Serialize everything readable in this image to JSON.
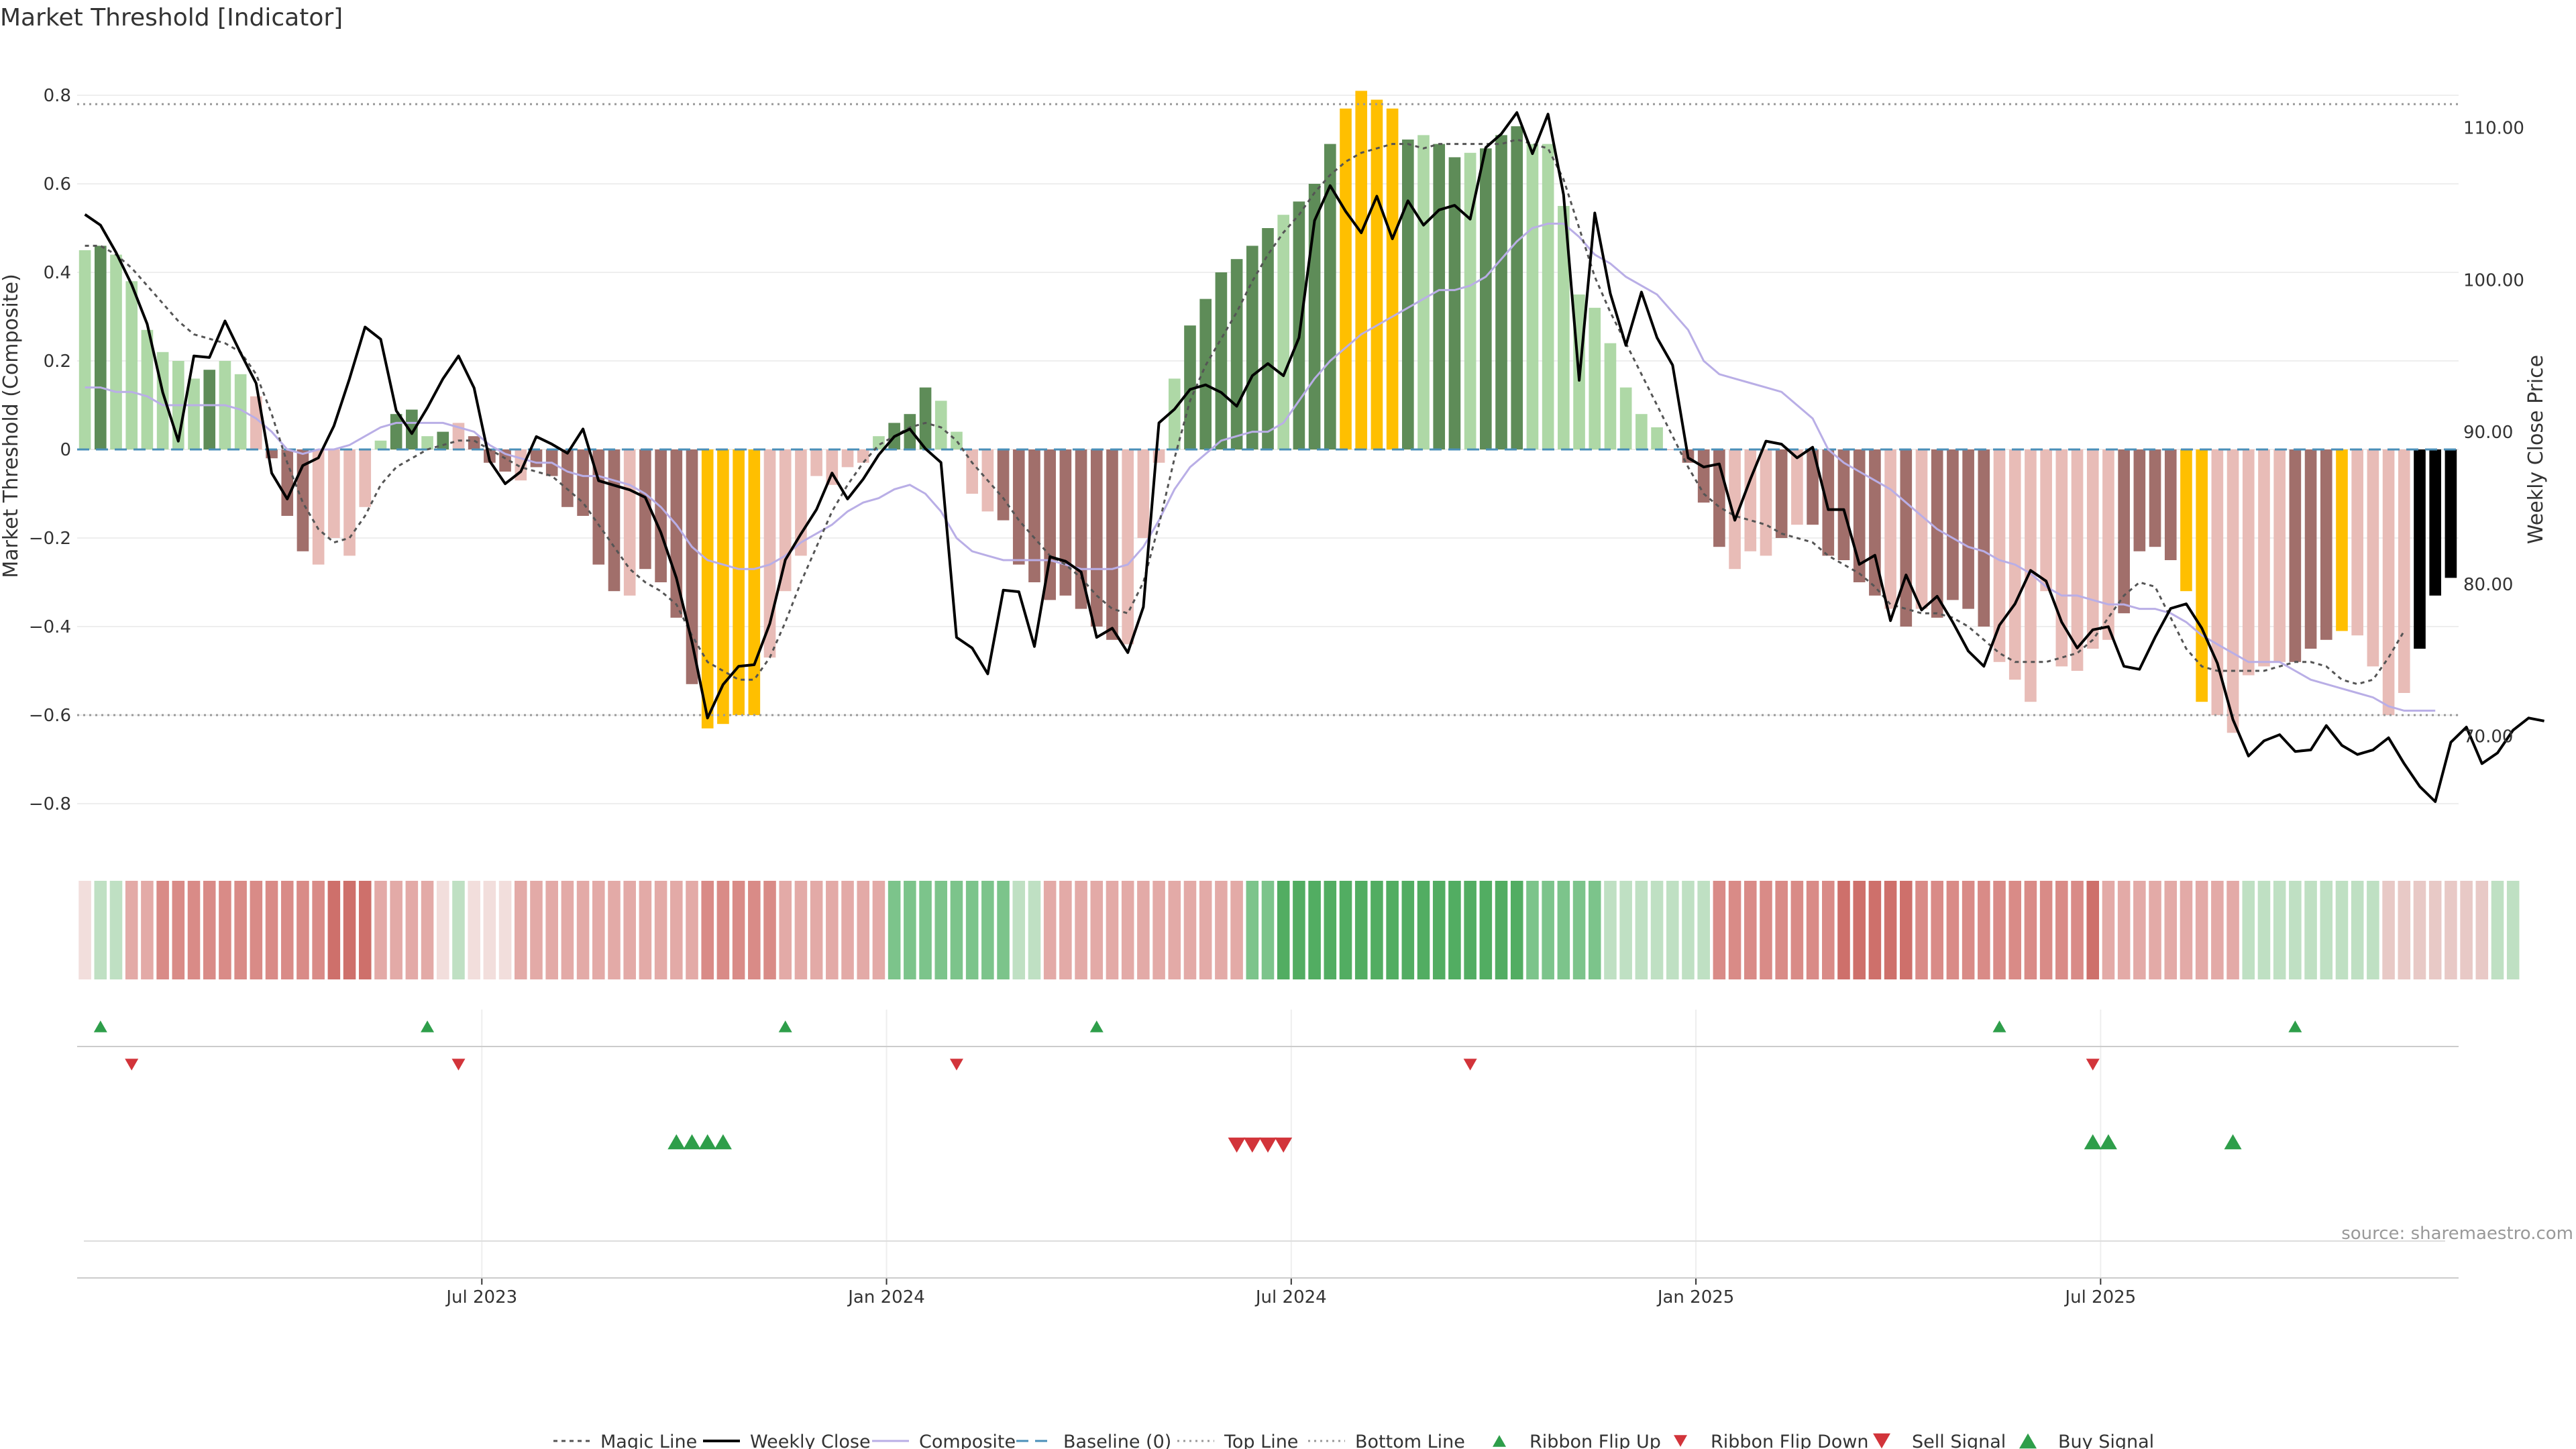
{
  "title": "Market Threshold [Indicator]",
  "source_note": "source: sharemaestro.com",
  "chart_data": {
    "type": "bar",
    "title": "Market Threshold [Indicator]",
    "ylabel": "Market Threshold (Composite)",
    "ylabel_right": "Weekly Close Price",
    "ylim": [
      -0.9,
      0.9
    ],
    "ylim_right": [
      63.0,
      114.0
    ],
    "y_ticks": [
      "0.8",
      "0.6",
      "0.4",
      "0.2",
      "0",
      "−0.2",
      "−0.4",
      "−0.6",
      "−0.8"
    ],
    "y_ticks_right": [
      "110.00",
      "100.00",
      "90.00",
      "80.00",
      "70.00"
    ],
    "x_ticks": [
      "Jul 2023",
      "Jan 2024",
      "Jul 2024",
      "Jan 2025",
      "Jul 2025"
    ],
    "x_tick_weeks": [
      26,
      52,
      78,
      104,
      130
    ],
    "top_line": 0.78,
    "bottom_line": -0.6,
    "baseline": 0,
    "composite": [
      0.45,
      0.46,
      0.44,
      0.38,
      0.27,
      0.22,
      0.2,
      0.16,
      0.18,
      0.2,
      0.17,
      0.12,
      -0.02,
      -0.15,
      -0.23,
      -0.26,
      -0.2,
      -0.24,
      -0.13,
      0.02,
      0.08,
      0.09,
      0.03,
      0.04,
      0.06,
      0.03,
      -0.03,
      -0.05,
      -0.07,
      -0.04,
      -0.06,
      -0.13,
      -0.15,
      -0.26,
      -0.32,
      -0.33,
      -0.27,
      -0.3,
      -0.38,
      -0.53,
      -0.63,
      -0.62,
      -0.6,
      -0.6,
      -0.47,
      -0.32,
      -0.24,
      -0.06,
      -0.08,
      -0.04,
      -0.03,
      0.03,
      0.06,
      0.08,
      0.14,
      0.11,
      0.04,
      -0.1,
      -0.14,
      -0.16,
      -0.26,
      -0.3,
      -0.34,
      -0.33,
      -0.36,
      -0.4,
      -0.43,
      -0.44,
      -0.2,
      -0.03,
      0.16,
      0.28,
      0.34,
      0.4,
      0.43,
      0.46,
      0.5,
      0.53,
      0.56,
      0.6,
      0.69,
      0.77,
      0.81,
      0.79,
      0.77,
      0.7,
      0.71,
      0.69,
      0.66,
      0.67,
      0.68,
      0.71,
      0.73,
      0.69,
      0.69,
      0.55,
      0.35,
      0.32,
      0.24,
      0.14,
      0.08,
      0.05,
      0.0,
      -0.03,
      -0.12,
      -0.22,
      -0.27,
      -0.23,
      -0.24,
      -0.2,
      -0.17,
      -0.17,
      -0.24,
      -0.25,
      -0.3,
      -0.33,
      -0.36,
      -0.4,
      -0.36,
      -0.38,
      -0.34,
      -0.36,
      -0.4,
      -0.48,
      -0.52,
      -0.57,
      -0.32,
      -0.49,
      -0.5,
      -0.45,
      -0.43,
      -0.37,
      -0.23,
      -0.22,
      -0.25,
      -0.32,
      -0.57,
      -0.6,
      -0.64,
      -0.51,
      -0.49,
      -0.48,
      -0.48,
      -0.45,
      -0.43,
      -0.41,
      -0.42,
      -0.49,
      -0.6,
      -0.55,
      -0.45,
      -0.33,
      -0.29
    ],
    "bar_colors": [
      "#aed8a6",
      "#5e8c58",
      "#aed8a6",
      "#aed8a6",
      "#aed8a6",
      "#aed8a6",
      "#aed8a6",
      "#aed8a6",
      "#5e8c58",
      "#aed8a6",
      "#aed8a6",
      "#e8bcb7",
      "#a16f6b",
      "#a16f6b",
      "#a16f6b",
      "#e8bcb7",
      "#e8bcb7",
      "#e8bcb7",
      "#e8bcb7",
      "#aed8a6",
      "#5e8c58",
      "#5e8c58",
      "#aed8a6",
      "#5e8c58",
      "#e8bcb7",
      "#a16f6b",
      "#a16f6b",
      "#a16f6b",
      "#e8bcb7",
      "#a16f6b",
      "#a16f6b",
      "#a16f6b",
      "#a16f6b",
      "#a16f6b",
      "#a16f6b",
      "#e8bcb7",
      "#a16f6b",
      "#a16f6b",
      "#a16f6b",
      "#a16f6b",
      "#ffbf00",
      "#ffbf00",
      "#ffbf00",
      "#ffbf00",
      "#e8bcb7",
      "#e8bcb7",
      "#e8bcb7",
      "#e8bcb7",
      "#e8bcb7",
      "#e8bcb7",
      "#e8bcb7",
      "#aed8a6",
      "#5e8c58",
      "#5e8c58",
      "#5e8c58",
      "#aed8a6",
      "#aed8a6",
      "#e8bcb7",
      "#e8bcb7",
      "#a16f6b",
      "#a16f6b",
      "#a16f6b",
      "#a16f6b",
      "#a16f6b",
      "#a16f6b",
      "#a16f6b",
      "#a16f6b",
      "#e8bcb7",
      "#e8bcb7",
      "#e8bcb7",
      "#aed8a6",
      "#5e8c58",
      "#5e8c58",
      "#5e8c58",
      "#5e8c58",
      "#5e8c58",
      "#5e8c58",
      "#aed8a6",
      "#5e8c58",
      "#5e8c58",
      "#5e8c58",
      "#ffbf00",
      "#ffbf00",
      "#ffbf00",
      "#ffbf00",
      "#5e8c58",
      "#aed8a6",
      "#5e8c58",
      "#5e8c58",
      "#aed8a6",
      "#5e8c58",
      "#5e8c58",
      "#5e8c58",
      "#aed8a6",
      "#aed8a6",
      "#aed8a6",
      "#aed8a6",
      "#aed8a6",
      "#aed8a6",
      "#aed8a6",
      "#aed8a6",
      "#aed8a6",
      "#e8bcb7",
      "#a16f6b",
      "#a16f6b",
      "#a16f6b",
      "#e8bcb7",
      "#e8bcb7",
      "#e8bcb7",
      "#a16f6b",
      "#e8bcb7",
      "#a16f6b",
      "#a16f6b",
      "#a16f6b",
      "#a16f6b",
      "#a16f6b",
      "#e8bcb7",
      "#a16f6b",
      "#e8bcb7",
      "#a16f6b",
      "#a16f6b",
      "#a16f6b",
      "#a16f6b",
      "#e8bcb7",
      "#e8bcb7",
      "#e8bcb7",
      "#e8bcb7",
      "#e8bcb7",
      "#e8bcb7",
      "#e8bcb7",
      "#e8bcb7",
      "#a16f6b",
      "#a16f6b",
      "#a16f6b",
      "#a16f6b",
      "#ffbf00",
      "#ffbf00",
      "#e8bcb7",
      "#e8bcb7",
      "#e8bcb7",
      "#e8bcb7",
      "#e8bcb7",
      "#a16f6b",
      "#a16f6b",
      "#a16f6b",
      "#ffbf00",
      "#e8bcb7",
      "#e8bcb7",
      "#e8bcb7",
      "#e8bcb7"
    ],
    "magic_line": [
      0.46,
      0.46,
      0.44,
      0.41,
      0.37,
      0.33,
      0.29,
      0.26,
      0.25,
      0.24,
      0.22,
      0.17,
      0.08,
      -0.03,
      -0.12,
      -0.18,
      -0.21,
      -0.2,
      -0.15,
      -0.08,
      -0.04,
      -0.02,
      -0.0,
      0.01,
      0.02,
      0.02,
      0.0,
      -0.02,
      -0.04,
      -0.05,
      -0.06,
      -0.09,
      -0.12,
      -0.17,
      -0.22,
      -0.27,
      -0.3,
      -0.32,
      -0.35,
      -0.42,
      -0.48,
      -0.5,
      -0.52,
      -0.52,
      -0.47,
      -0.39,
      -0.3,
      -0.22,
      -0.14,
      -0.08,
      -0.03,
      0.01,
      0.03,
      0.05,
      0.06,
      0.05,
      0.02,
      -0.03,
      -0.07,
      -0.11,
      -0.16,
      -0.2,
      -0.24,
      -0.26,
      -0.29,
      -0.33,
      -0.36,
      -0.37,
      -0.3,
      -0.17,
      -0.02,
      0.11,
      0.19,
      0.25,
      0.31,
      0.38,
      0.44,
      0.49,
      0.53,
      0.58,
      0.62,
      0.65,
      0.67,
      0.68,
      0.69,
      0.69,
      0.68,
      0.69,
      0.69,
      0.69,
      0.69,
      0.69,
      0.7,
      0.69,
      0.68,
      0.61,
      0.5,
      0.39,
      0.31,
      0.24,
      0.17,
      0.1,
      0.03,
      -0.04,
      -0.1,
      -0.13,
      -0.15,
      -0.16,
      -0.17,
      -0.19,
      -0.2,
      -0.21,
      -0.24,
      -0.26,
      -0.28,
      -0.31,
      -0.35,
      -0.36,
      -0.37,
      -0.37,
      -0.38,
      -0.4,
      -0.43,
      -0.46,
      -0.48,
      -0.48,
      -0.48,
      -0.47,
      -0.46,
      -0.43,
      -0.38,
      -0.33,
      -0.3,
      -0.31,
      -0.38,
      -0.45,
      -0.49,
      -0.5,
      -0.5,
      -0.5,
      -0.5,
      -0.49,
      -0.48,
      -0.48,
      -0.49,
      -0.52,
      -0.53,
      -0.52,
      -0.47,
      -0.41
    ],
    "composite_smooth": [
      0.14,
      0.14,
      0.13,
      0.13,
      0.12,
      0.1,
      0.1,
      0.1,
      0.1,
      0.1,
      0.09,
      0.07,
      0.04,
      0.0,
      -0.01,
      0.0,
      0.0,
      0.01,
      0.03,
      0.05,
      0.06,
      0.06,
      0.06,
      0.06,
      0.05,
      0.04,
      0.01,
      -0.01,
      -0.02,
      -0.03,
      -0.03,
      -0.05,
      -0.06,
      -0.06,
      -0.07,
      -0.08,
      -0.1,
      -0.13,
      -0.17,
      -0.22,
      -0.25,
      -0.26,
      -0.27,
      -0.27,
      -0.26,
      -0.24,
      -0.21,
      -0.19,
      -0.17,
      -0.14,
      -0.12,
      -0.11,
      -0.09,
      -0.08,
      -0.1,
      -0.14,
      -0.2,
      -0.23,
      -0.24,
      -0.25,
      -0.25,
      -0.25,
      -0.25,
      -0.26,
      -0.27,
      -0.27,
      -0.27,
      -0.26,
      -0.22,
      -0.16,
      -0.09,
      -0.04,
      -0.01,
      0.02,
      0.03,
      0.04,
      0.04,
      0.06,
      0.11,
      0.16,
      0.2,
      0.23,
      0.26,
      0.28,
      0.3,
      0.32,
      0.34,
      0.36,
      0.36,
      0.37,
      0.39,
      0.43,
      0.47,
      0.5,
      0.51,
      0.51,
      0.48,
      0.44,
      0.42,
      0.39,
      0.37,
      0.35,
      0.31,
      0.27,
      0.2,
      0.17,
      0.16,
      0.15,
      0.14,
      0.13,
      0.1,
      0.07,
      0.0,
      -0.03,
      -0.05,
      -0.07,
      -0.09,
      -0.12,
      -0.15,
      -0.18,
      -0.2,
      -0.22,
      -0.23,
      -0.25,
      -0.26,
      -0.28,
      -0.31,
      -0.33,
      -0.33,
      -0.34,
      -0.35,
      -0.35,
      -0.36,
      -0.36,
      -0.37,
      -0.39,
      -0.42,
      -0.44,
      -0.46,
      -0.48,
      -0.48,
      -0.48,
      -0.5,
      -0.52,
      -0.53,
      -0.54,
      -0.55,
      -0.56,
      -0.58,
      -0.59,
      -0.59,
      -0.59
    ],
    "weekly_close": [
      104.3,
      103.6,
      101.8,
      99.7,
      97.1,
      92.6,
      89.4,
      95.0,
      94.9,
      97.3,
      95.2,
      93.2,
      87.3,
      85.6,
      87.8,
      88.3,
      90.4,
      93.5,
      96.9,
      96.1,
      91.4,
      89.9,
      91.6,
      93.5,
      95.0,
      92.9,
      88.1,
      86.6,
      87.4,
      89.7,
      89.2,
      88.6,
      90.2,
      86.8,
      86.5,
      86.2,
      85.7,
      83.4,
      80.4,
      76.2,
      71.2,
      73.4,
      74.6,
      74.7,
      77.4,
      81.6,
      83.3,
      84.9,
      87.3,
      85.6,
      86.9,
      88.5,
      89.7,
      90.2,
      88.9,
      88.0,
      76.5,
      75.8,
      74.1,
      79.6,
      79.5,
      75.9,
      81.8,
      81.5,
      80.8,
      76.5,
      77.1,
      75.5,
      78.5,
      90.6,
      91.5,
      92.8,
      93.1,
      92.6,
      91.7,
      93.7,
      94.5,
      93.7,
      96.2,
      103.9,
      106.2,
      104.5,
      103.1,
      105.5,
      102.7,
      105.2,
      103.6,
      104.6,
      104.9,
      104.0,
      108.7,
      109.6,
      111.0,
      108.3,
      110.9,
      105.6,
      93.4,
      104.4,
      99.1,
      95.7,
      99.2,
      96.2,
      94.4,
      88.3,
      87.7,
      87.9,
      84.2,
      86.9,
      89.4,
      89.2,
      88.3,
      89.0,
      84.9,
      84.9,
      81.3,
      81.9,
      77.6,
      80.6,
      78.3,
      79.2,
      77.5,
      75.6,
      74.6,
      77.3,
      78.7,
      80.9,
      80.2,
      77.5,
      75.8,
      77.0,
      77.2,
      74.6,
      74.4,
      76.5,
      78.4,
      78.7,
      77.1,
      74.8,
      71.1,
      68.7,
      69.7,
      70.1,
      69.0,
      69.1,
      70.7,
      69.4,
      68.8,
      69.1,
      69.9,
      68.2,
      66.7,
      65.7,
      69.6,
      70.6,
      68.2,
      68.9,
      70.4,
      71.2,
      71.0
    ],
    "ribbon_colors": [
      "#f2dedc",
      "#bfe0c3",
      "#bfe0c3",
      "#e3aaa7",
      "#e3aaa7",
      "#d98b87",
      "#d98b87",
      "#d98b87",
      "#d98b87",
      "#d98b87",
      "#d98b87",
      "#d98b87",
      "#d98b87",
      "#d98b87",
      "#d98b87",
      "#d98b87",
      "#ce706b",
      "#ce706b",
      "#ce706b",
      "#e3aaa7",
      "#e3aaa7",
      "#e3aaa7",
      "#e3aaa7",
      "#f2dedc",
      "#bfe0c3",
      "#f2dedc",
      "#f2dedc",
      "#f2dedc",
      "#e3aaa7",
      "#e3aaa7",
      "#e3aaa7",
      "#e3aaa7",
      "#e3aaa7",
      "#e3aaa7",
      "#e3aaa7",
      "#e3aaa7",
      "#e3aaa7",
      "#e3aaa7",
      "#e3aaa7",
      "#e3aaa7",
      "#d98b87",
      "#d98b87",
      "#d98b87",
      "#d98b87",
      "#d98b87",
      "#e3aaa7",
      "#e3aaa7",
      "#e3aaa7",
      "#e3aaa7",
      "#e3aaa7",
      "#e3aaa7",
      "#e3aaa7",
      "#7cc48b",
      "#7cc48b",
      "#7cc48b",
      "#7cc48b",
      "#7cc48b",
      "#7cc48b",
      "#7cc48b",
      "#7cc48b",
      "#bfe0c3",
      "#bfe0c3",
      "#e3aaa7",
      "#e3aaa7",
      "#e3aaa7",
      "#e3aaa7",
      "#e3aaa7",
      "#e3aaa7",
      "#e3aaa7",
      "#e3aaa7",
      "#e3aaa7",
      "#e3aaa7",
      "#e3aaa7",
      "#e3aaa7",
      "#e3aaa7",
      "#7cc48b",
      "#7cc48b",
      "#52ad62",
      "#52ad62",
      "#52ad62",
      "#52ad62",
      "#52ad62",
      "#52ad62",
      "#52ad62",
      "#52ad62",
      "#52ad62",
      "#52ad62",
      "#52ad62",
      "#52ad62",
      "#52ad62",
      "#52ad62",
      "#52ad62",
      "#52ad62",
      "#7cc48b",
      "#7cc48b",
      "#7cc48b",
      "#7cc48b",
      "#7cc48b",
      "#bfe0c3",
      "#bfe0c3",
      "#bfe0c3",
      "#bfe0c3",
      "#bfe0c3",
      "#bfe0c3",
      "#bfe0c3",
      "#d98b87",
      "#d98b87",
      "#d98b87",
      "#d98b87",
      "#d98b87",
      "#d98b87",
      "#d98b87",
      "#d98b87",
      "#ce706b",
      "#ce706b",
      "#ce706b",
      "#ce706b",
      "#ce706b",
      "#d98b87",
      "#d98b87",
      "#d98b87",
      "#d98b87",
      "#d98b87",
      "#d98b87",
      "#d98b87",
      "#d98b87",
      "#d98b87",
      "#d98b87",
      "#d98b87",
      "#ce706b",
      "#e3aaa7",
      "#e3aaa7",
      "#e3aaa7",
      "#e3aaa7",
      "#e3aaa7",
      "#e3aaa7",
      "#e3aaa7",
      "#e3aaa7",
      "#e3aaa7",
      "#bfe0c3",
      "#bfe0c3",
      "#bfe0c3",
      "#bfe0c3",
      "#bfe0c3",
      "#bfe0c3",
      "#bfe0c3",
      "#bfe0c3",
      "#bfe0c3",
      "#e8c9c6",
      "#e8c9c6",
      "#e8c9c6",
      "#e8c9c6",
      "#e8c9c6",
      "#e8c9c6",
      "#e8c9c6",
      "#bfe0c3",
      "#bfe0c3"
    ],
    "ribbon_flip_up": [
      1,
      22,
      45,
      65,
      123,
      142
    ],
    "ribbon_flip_down": [
      3,
      24,
      56,
      89,
      129
    ],
    "buy_signal": [
      38,
      39,
      40,
      41,
      129,
      130,
      138
    ],
    "sell_signal": [
      74,
      75,
      76,
      77
    ],
    "legend": [
      "Magic Line",
      "Weekly Close",
      "Composite",
      "Baseline (0)",
      "Top Line",
      "Bottom Line",
      "Ribbon Flip Up",
      "Ribbon Flip Down",
      "Sell Signal",
      "Buy Signal"
    ],
    "legend_placement": "bottom-center",
    "grid": true
  },
  "colors": {
    "green_strong": "#5e8c58",
    "green_light": "#aed8a6",
    "red_strong": "#a16f6b",
    "red_light": "#e8bcb7",
    "extreme": "#ffbf00",
    "magic_line": "#555555",
    "close_line": "#000000",
    "composite_line": "#b9aee6",
    "baseline": "#4a8fb8",
    "signal_green": "#2e9e4a",
    "signal_red": "#d2343a"
  }
}
